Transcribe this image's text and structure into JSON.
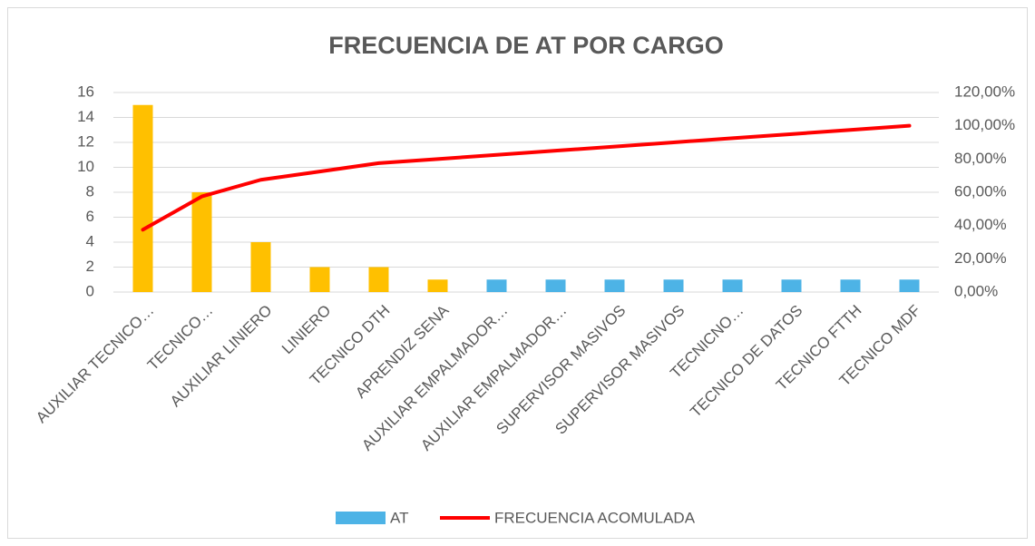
{
  "chart_data": {
    "type": "pareto",
    "title": "FRECUENCIA DE AT POR CARGO",
    "categories": [
      "AUXILIAR TECNICO…",
      "TECNICO…",
      "AUXILIAR LINIERO",
      "LINIERO",
      "TECNICO DTH",
      "APRENDIZ SENA",
      "AUXILIAR EMPALMADOR…",
      "AUXILIAR EMPALMADOR…",
      "SUPERVISOR MASIVOS",
      "SUPERVISOR MASIVOS",
      "TECNICNO…",
      "TECNICO DE DATOS",
      "TECNICO FTTH",
      "TECNICO MDF"
    ],
    "series": [
      {
        "name": "AT",
        "type": "bar",
        "color": "#4db3e6",
        "colors": [
          "#ffc000",
          "#ffc000",
          "#ffc000",
          "#ffc000",
          "#ffc000",
          "#ffc000",
          "#4db3e6",
          "#4db3e6",
          "#4db3e6",
          "#4db3e6",
          "#4db3e6",
          "#4db3e6",
          "#4db3e6",
          "#4db3e6"
        ],
        "values": [
          15,
          8,
          4,
          2,
          2,
          1,
          1,
          1,
          1,
          1,
          1,
          1,
          1,
          1
        ]
      },
      {
        "name": "FRECUENCIA ACOMULADA",
        "type": "line",
        "axis": "y2",
        "color": "#ff0000",
        "values": [
          37.5,
          57.5,
          67.5,
          72.5,
          77.5,
          80,
          82.5,
          85,
          87.5,
          90,
          92.5,
          95,
          97.5,
          100
        ]
      }
    ],
    "ylim": [
      0,
      16
    ],
    "yticks": [
      0,
      2,
      4,
      6,
      8,
      10,
      12,
      14,
      16
    ],
    "y2lim": [
      0,
      120
    ],
    "y2ticks": [
      {
        "value": 0,
        "label": "0,00%"
      },
      {
        "value": 20,
        "label": "20,00%"
      },
      {
        "value": 40,
        "label": "40,00%"
      },
      {
        "value": 60,
        "label": "60,00%"
      },
      {
        "value": 80,
        "label": "80,00%"
      },
      {
        "value": 100,
        "label": "100,00%"
      },
      {
        "value": 120,
        "label": "120,00%"
      }
    ],
    "grid": true,
    "legend": "bottom"
  }
}
